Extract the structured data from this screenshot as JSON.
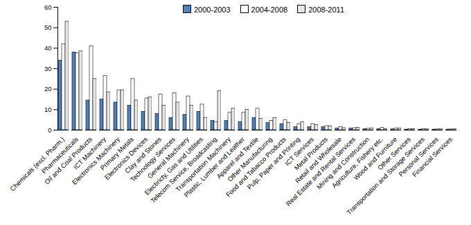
{
  "chart_data": {
    "type": "bar",
    "legend": "top",
    "categories": [
      "Chemicals (excl. Pharm.)",
      "Pharmaceuticals",
      "Oil and Coal Products",
      "ICT Machinery",
      "Electronics Machinery",
      "Primary Metals",
      "Electronics Devices",
      "Clay and Stones",
      "Technology Services",
      "General Machinery",
      "Electiricty, Gas and Utilities",
      "Telecom Service, Broadcasting",
      "Transportation Machinery",
      "Plastic, Lumber and Leather",
      "Apparel and Textile",
      "Other Manufacturing",
      "Food and Tabacco Products",
      "Pulp, Paper and Printing",
      "ICT Services",
      "Metal Products",
      "Retail and Wholesale",
      "Real Estate and Rental Services",
      "Mining and Construction",
      "Agriculture, Fishery etc.",
      "Wood and Furniture",
      "Other Services",
      "Transportation and Storage Services",
      "Personal Services",
      "Financial Services"
    ],
    "series": [
      {
        "name": "2000-2003",
        "color": "#4f81bd",
        "values": [
          34,
          38,
          14.5,
          15,
          13.5,
          12,
          9,
          8,
          6,
          7.5,
          9,
          4.5,
          4.5,
          4,
          6,
          3.5,
          3,
          1.5,
          1.5,
          1.5,
          0.8,
          0.8,
          0.5,
          0.5,
          0.4,
          0.3,
          0.3,
          0.3,
          0.3
        ]
      },
      {
        "name": "2004-2008",
        "color": "#ffffff",
        "values": [
          42,
          37.5,
          41,
          26.5,
          19.5,
          25,
          15.5,
          17.5,
          18,
          16.5,
          12.5,
          4,
          8.5,
          8.5,
          10.5,
          4.5,
          5,
          3,
          3,
          2,
          1.5,
          1,
          0.7,
          1.2,
          0.8,
          0.5,
          0.5,
          0.4,
          0.4
        ]
      },
      {
        "name": "2008-2011",
        "color": "#e6e6e6",
        "values": [
          53,
          38.5,
          25,
          18.5,
          19.5,
          14.5,
          16,
          12,
          13.5,
          12,
          6,
          19,
          10.5,
          10,
          5.5,
          6,
          3.5,
          4,
          2.5,
          2,
          1,
          1.2,
          0.8,
          0.5,
          0.8,
          0.5,
          0.4,
          0.4,
          0.4
        ]
      }
    ],
    "ylim": [
      0,
      60
    ],
    "yticks": [
      0,
      10,
      20,
      30,
      40,
      50,
      60
    ]
  }
}
